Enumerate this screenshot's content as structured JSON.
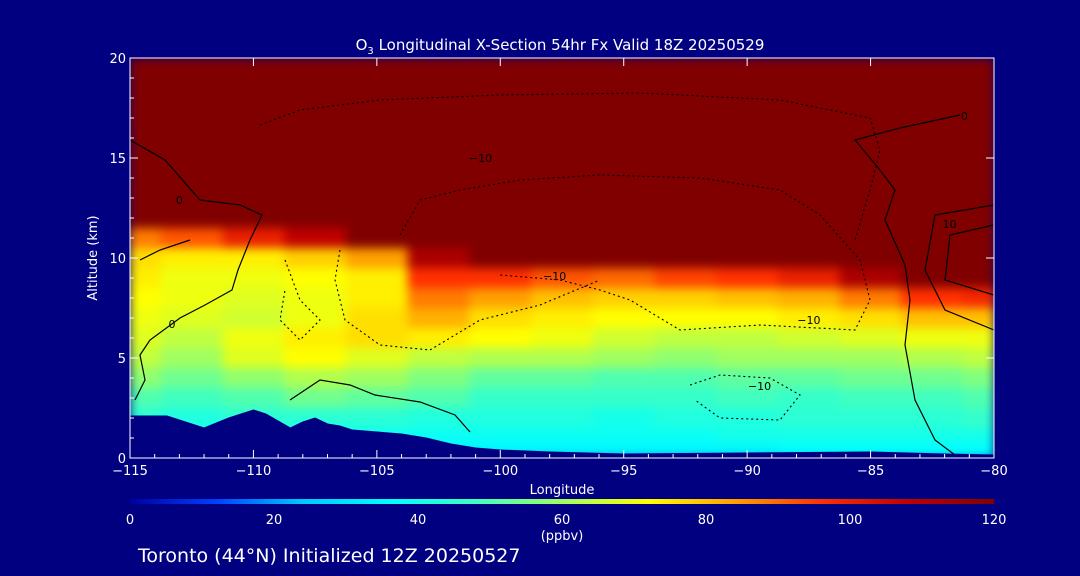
{
  "chart_data": {
    "type": "heatmap",
    "title": {
      "species": "O",
      "subscript": "3",
      "rest": " Longitudinal X-Section 54hr  Fx Valid 18Z 20250529"
    },
    "xlabel": "Longitude",
    "ylabel": "Altitude (km)",
    "xlim": [
      -115,
      -80
    ],
    "ylim": [
      0,
      20
    ],
    "xticks": [
      -115,
      -110,
      -105,
      -100,
      -95,
      -90,
      -85,
      -80
    ],
    "xtick_labels": [
      "−115",
      "−110",
      "−105",
      "−100",
      "−95",
      "−90",
      "−85",
      "−80"
    ],
    "yticks": [
      0,
      5,
      10,
      15,
      20
    ],
    "colorbar": {
      "label": "(ppbv)",
      "range": [
        0,
        120
      ],
      "ticks": [
        0,
        20,
        40,
        60,
        80,
        100,
        120
      ],
      "colors": [
        "#0000a0",
        "#0040ff",
        "#00c8ff",
        "#00ffff",
        "#40ffc0",
        "#a0ff60",
        "#ffff00",
        "#ffa000",
        "#ff3000",
        "#c00000",
        "#800000"
      ]
    },
    "ozone_field": {
      "rows_alt_km_top_to_bottom": [
        20,
        18,
        16,
        14,
        12,
        11,
        10,
        9,
        8,
        7,
        6,
        5,
        4,
        3,
        2,
        1,
        0.5
      ],
      "cols_lon": [
        -115,
        -112.5,
        -110,
        -107.5,
        -105,
        -102.5,
        -100,
        -97.5,
        -95,
        -92.5,
        -90,
        -87.5,
        -85,
        -82.5,
        -80
      ],
      "values_ppbv": [
        [
          120,
          120,
          120,
          120,
          120,
          120,
          120,
          120,
          120,
          120,
          120,
          120,
          120,
          120,
          120
        ],
        [
          120,
          120,
          120,
          120,
          120,
          120,
          120,
          120,
          120,
          120,
          120,
          120,
          120,
          120,
          120
        ],
        [
          120,
          120,
          120,
          120,
          120,
          120,
          120,
          120,
          120,
          120,
          120,
          120,
          120,
          120,
          120
        ],
        [
          120,
          120,
          120,
          120,
          120,
          120,
          120,
          120,
          120,
          120,
          120,
          120,
          120,
          120,
          120
        ],
        [
          120,
          120,
          120,
          120,
          120,
          120,
          120,
          120,
          120,
          120,
          120,
          120,
          120,
          120,
          120
        ],
        [
          88,
          92,
          100,
          108,
          120,
          120,
          120,
          120,
          120,
          120,
          120,
          120,
          120,
          120,
          120
        ],
        [
          76,
          74,
          74,
          78,
          84,
          112,
          120,
          120,
          120,
          120,
          120,
          120,
          120,
          120,
          120
        ],
        [
          74,
          70,
          70,
          72,
          74,
          96,
          96,
          92,
          90,
          94,
          96,
          100,
          112,
          120,
          120
        ],
        [
          72,
          70,
          68,
          70,
          74,
          88,
          84,
          80,
          78,
          78,
          80,
          82,
          88,
          96,
          98
        ],
        [
          70,
          68,
          66,
          70,
          76,
          82,
          76,
          74,
          72,
          72,
          72,
          74,
          76,
          80,
          80
        ],
        [
          68,
          64,
          70,
          74,
          76,
          74,
          72,
          70,
          66,
          64,
          64,
          66,
          68,
          70,
          70
        ],
        [
          64,
          60,
          68,
          72,
          68,
          64,
          62,
          62,
          60,
          58,
          60,
          60,
          60,
          62,
          64
        ],
        [
          58,
          54,
          58,
          62,
          60,
          56,
          52,
          52,
          50,
          50,
          52,
          52,
          54,
          54,
          56
        ],
        [
          50,
          48,
          50,
          54,
          52,
          50,
          46,
          46,
          46,
          46,
          48,
          46,
          48,
          48,
          50
        ],
        [
          44,
          42,
          44,
          44,
          44,
          42,
          42,
          42,
          40,
          42,
          42,
          44,
          44,
          44,
          46
        ],
        [
          40,
          38,
          38,
          38,
          38,
          38,
          38,
          38,
          38,
          38,
          40,
          40,
          40,
          40,
          40
        ],
        [
          36,
          34,
          34,
          34,
          34,
          34,
          34,
          34,
          34,
          34,
          34,
          36,
          36,
          36,
          36
        ]
      ]
    },
    "terrain_km": {
      "lon": [
        -115,
        -113.5,
        -112,
        -111,
        -110,
        -109.5,
        -108.5,
        -108,
        -107.5,
        -107,
        -106.5,
        -106,
        -105,
        -104,
        -103,
        -102,
        -101,
        -100,
        -98,
        -95,
        -90,
        -85,
        -82,
        -80
      ],
      "alt": [
        2.1,
        2.1,
        1.5,
        2.0,
        2.4,
        2.2,
        1.5,
        1.8,
        2.0,
        1.7,
        1.6,
        1.4,
        1.3,
        1.2,
        1.0,
        0.7,
        0.5,
        0.4,
        0.3,
        0.2,
        0.25,
        0.3,
        0.2,
        0.15
      ]
    },
    "contour_labels": [
      {
        "text": "0",
        "lon": -113.0,
        "alt": 12.7
      },
      {
        "text": "0",
        "lon": -113.3,
        "alt": 6.5
      },
      {
        "text": "−10",
        "lon": -100.8,
        "alt": 14.8
      },
      {
        "text": "−10",
        "lon": -97.8,
        "alt": 8.9
      },
      {
        "text": "−10",
        "lon": -87.5,
        "alt": 6.7
      },
      {
        "text": "−10",
        "lon": -89.5,
        "alt": 3.4
      },
      {
        "text": "0",
        "lon": -81.2,
        "alt": 16.9
      },
      {
        "text": "10",
        "lon": -81.8,
        "alt": 11.5
      }
    ],
    "footer": "Toronto (44°N) Initialized 12Z 20250527"
  }
}
